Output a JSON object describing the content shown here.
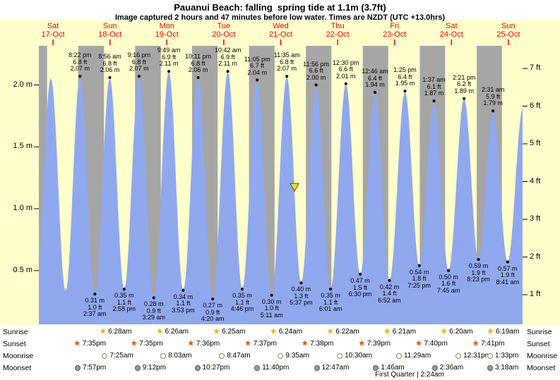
{
  "header": {
    "title": "Pauanui Beach: falling  spring tide at 1.1m (3.7ft)",
    "subtitle": "Image captured 2 hours and 47 minutes before low water. Times are NZDT (UTC +13.0hrs)"
  },
  "days": [
    {
      "name": "Sat",
      "date": "17-Oct"
    },
    {
      "name": "Sun",
      "date": "18-Oct"
    },
    {
      "name": "Mon",
      "date": "19-Oct"
    },
    {
      "name": "Tue",
      "date": "20-Oct"
    },
    {
      "name": "Wed",
      "date": "21-Oct"
    },
    {
      "name": "Thu",
      "date": "22-Oct"
    },
    {
      "name": "Fri",
      "date": "23-Oct"
    },
    {
      "name": "Sat",
      "date": "24-Oct"
    },
    {
      "name": "Sun",
      "date": "25-Oct"
    }
  ],
  "y_axis": {
    "left": [
      {
        "label": "2.0 m",
        "value_m": 2.0
      },
      {
        "label": "1.5 m",
        "value_m": 1.5
      },
      {
        "label": "1.0 m",
        "value_m": 1.0
      },
      {
        "label": "0.5 m",
        "value_m": 0.5
      }
    ],
    "right": [
      {
        "label": "7 ft",
        "value_m": 2.1336
      },
      {
        "label": "6 ft",
        "value_m": 1.8288
      },
      {
        "label": "5 ft",
        "value_m": 1.524
      },
      {
        "label": "4 ft",
        "value_m": 1.2192
      },
      {
        "label": "3 ft",
        "value_m": 0.9144
      },
      {
        "label": "2 ft",
        "value_m": 0.6096
      },
      {
        "label": "1 ft",
        "value_m": 0.3048
      }
    ]
  },
  "chart_data": {
    "type": "area",
    "series_name": "tide height",
    "title": "Pauanui Beach tide curve, Sat 17-Oct to Sun 25-Oct",
    "x_unit": "hours from Sat 17-Oct 00:00",
    "x_range_hours": [
      3,
      207
    ],
    "ylim_m": [
      0,
      2.32
    ],
    "highs": [
      {
        "time": "8:22 pm",
        "ft": "6.8 ft",
        "m": "2.07 m",
        "hour": 20.37,
        "height_m": 2.07
      },
      {
        "time": "8:56 am",
        "ft": "6.8 ft",
        "m": "2.06 m",
        "hour": 32.93,
        "height_m": 2.06
      },
      {
        "time": "9:16 pm",
        "ft": "6.8 ft",
        "m": "2.07 m",
        "hour": 45.27,
        "height_m": 2.07
      },
      {
        "time": "9:49 am",
        "ft": "6.9 ft",
        "m": "2.11 m",
        "hour": 57.82,
        "height_m": 2.11
      },
      {
        "time": "10:11 pm",
        "ft": "6.8 ft",
        "m": "2.06 m",
        "hour": 70.18,
        "height_m": 2.06
      },
      {
        "time": "10:42 am",
        "ft": "6.9 ft",
        "m": "2.11 m",
        "hour": 82.7,
        "height_m": 2.11
      },
      {
        "time": "11:05 pm",
        "ft": "6.7 ft",
        "m": "2.04 m",
        "hour": 95.08,
        "height_m": 2.04
      },
      {
        "time": "11:35 am",
        "ft": "6.8 ft",
        "m": "2.07 m",
        "hour": 107.58,
        "height_m": 2.07
      },
      {
        "time": "11:56 pm",
        "ft": "6.6 ft",
        "m": "2.00 m",
        "hour": 119.93,
        "height_m": 2.0
      },
      {
        "time": "12:30 pm",
        "ft": "6.6 ft",
        "m": "2.01 m",
        "hour": 132.5,
        "height_m": 2.01
      },
      {
        "time": "12:46 am",
        "ft": "6.4 ft",
        "m": "1.94 m",
        "hour": 144.77,
        "height_m": 1.94
      },
      {
        "time": "1:25 pm",
        "ft": "6.4 ft",
        "m": "1.95 m",
        "hour": 157.42,
        "height_m": 1.95
      },
      {
        "time": "1:37 am",
        "ft": "6.1 ft",
        "m": "1.87 m",
        "hour": 169.62,
        "height_m": 1.87
      },
      {
        "time": "2:21 pm",
        "ft": "6.2 ft",
        "m": "1.89 m",
        "hour": 182.35,
        "height_m": 1.89
      },
      {
        "time": "2:31 am",
        "ft": "5.9 ft",
        "m": "1.79 m",
        "hour": 194.52,
        "height_m": 1.79
      }
    ],
    "lows": [
      {
        "time": "2:37 am",
        "ft": "1.0 ft",
        "m": "0.31 m",
        "hour": 26.62,
        "height_m": 0.31
      },
      {
        "time": "2:58 pm",
        "ft": "1.1 ft",
        "m": "0.35 m",
        "hour": 38.97,
        "height_m": 0.35
      },
      {
        "time": "3:29 am",
        "ft": "0.9 ft",
        "m": "0.28 m",
        "hour": 51.48,
        "height_m": 0.28
      },
      {
        "time": "3:53 pm",
        "ft": "1.1 ft",
        "m": "0.34 m",
        "hour": 63.88,
        "height_m": 0.34
      },
      {
        "time": "4:20 am",
        "ft": "0.9 ft",
        "m": "0.27 m",
        "hour": 76.33,
        "height_m": 0.27
      },
      {
        "time": "4:46 pm",
        "ft": "1.1 ft",
        "m": "0.35 m",
        "hour": 88.77,
        "height_m": 0.35
      },
      {
        "time": "5:11 am",
        "ft": "1.0 ft",
        "m": "0.30 m",
        "hour": 101.18,
        "height_m": 0.3
      },
      {
        "time": "5:37 pm",
        "ft": "1.3 ft",
        "m": "0.40 m",
        "hour": 113.62,
        "height_m": 0.4
      },
      {
        "time": "6:01 am",
        "ft": "1.1 ft",
        "m": "0.35 m",
        "hour": 126.02,
        "height_m": 0.35
      },
      {
        "time": "6:30 pm",
        "ft": "1.5 ft",
        "m": "0.47 m",
        "hour": 138.5,
        "height_m": 0.47
      },
      {
        "time": "6:52 am",
        "ft": "1.4 ft",
        "m": "0.42 m",
        "hour": 150.87,
        "height_m": 0.42
      },
      {
        "time": "7:25 pm",
        "ft": "1.8 ft",
        "m": "0.54 m",
        "hour": 163.42,
        "height_m": 0.54
      },
      {
        "time": "7:45 am",
        "ft": "1.6 ft",
        "m": "0.50 m",
        "hour": 175.75,
        "height_m": 0.5
      },
      {
        "time": "8:23 pm",
        "ft": "1.9 ft",
        "m": "0.59 m",
        "hour": 188.38,
        "height_m": 0.59
      },
      {
        "time": "8:41 am",
        "ft": "1.9 ft",
        "m": "0.57 m",
        "hour": 200.68,
        "height_m": 0.57
      }
    ],
    "edge_extremes": [
      {
        "hour": 1.83,
        "height_m": 0.33
      },
      {
        "hour": 8.05,
        "height_m": 2.06
      },
      {
        "hour": 14.3,
        "height_m": 0.33
      },
      {
        "hour": 207.2,
        "height_m": 1.82
      }
    ],
    "night_bands": [
      [
        3.0,
        6.48
      ],
      [
        19.58,
        30.47
      ],
      [
        43.58,
        54.43
      ],
      [
        67.6,
        78.42
      ],
      [
        91.62,
        102.4
      ],
      [
        115.63,
        126.37
      ],
      [
        139.65,
        150.35
      ],
      [
        163.67,
        174.33
      ],
      [
        187.68,
        198.32
      ]
    ],
    "marker": {
      "hour": 110.83,
      "height_m": 1.13,
      "meaning": "capture time, 2h47m before low water, tide 1.1m falling"
    },
    "legend": "none",
    "grid": false,
    "colors": {
      "area": "#90a8ee",
      "night": "#a6a6a6",
      "day_bg": "#ffffcc",
      "day_label": "#ee0000",
      "marker_fill": "#ffe400"
    }
  },
  "astro": {
    "rows": [
      {
        "label": "Sunrise",
        "icon": "sunrise-star-icon",
        "entries": [
          {
            "time": "6:28am",
            "hour": 30.47
          },
          {
            "time": "6:26am",
            "hour": 54.43
          },
          {
            "time": "6:25am",
            "hour": 78.42
          },
          {
            "time": "6:24am",
            "hour": 102.4
          },
          {
            "time": "6:22am",
            "hour": 126.37
          },
          {
            "time": "6:21am",
            "hour": 150.35
          },
          {
            "time": "6:20am",
            "hour": 174.33
          },
          {
            "time": "6:19am",
            "hour": 198.32
          }
        ]
      },
      {
        "label": "Sunset",
        "icon": "sunset-star-icon",
        "entries": [
          {
            "time": "7:35pm",
            "hour": 19.58
          },
          {
            "time": "7:35pm",
            "hour": 43.58
          },
          {
            "time": "7:36pm",
            "hour": 67.6
          },
          {
            "time": "7:37pm",
            "hour": 91.62
          },
          {
            "time": "7:38pm",
            "hour": 115.63
          },
          {
            "time": "7:39pm",
            "hour": 139.65
          },
          {
            "time": "7:40pm",
            "hour": 163.67
          },
          {
            "time": "7:41pm",
            "hour": 187.68
          }
        ]
      },
      {
        "label": "Moonrise",
        "icon": "moonrise-circle-icon",
        "entries": [
          {
            "time": "7:25am",
            "hour": 31.42
          },
          {
            "time": "8:03am",
            "hour": 56.05
          },
          {
            "time": "8:47am",
            "hour": 80.78
          },
          {
            "time": "9:35am",
            "hour": 105.58
          },
          {
            "time": "10:30am",
            "hour": 130.5
          },
          {
            "time": "11:29am",
            "hour": 155.48
          },
          {
            "time": "12:31pm",
            "hour": 180.52
          },
          {
            "time": "1:33pm",
            "hour": 205.55
          }
        ]
      },
      {
        "label": "Moonset",
        "icon": "moonset-circle-icon",
        "entries": [
          {
            "time": "7:57pm",
            "hour": 19.95
          },
          {
            "time": "9:12pm",
            "hour": 45.2
          },
          {
            "time": "10:27pm",
            "hour": 70.45
          },
          {
            "time": "11:40pm",
            "hour": 95.67
          },
          {
            "time": "12:47am",
            "hour": 120.78
          },
          {
            "time": "1:46am",
            "hour": 145.77
          },
          {
            "time": "2:36am",
            "hour": 170.6
          },
          {
            "time": "3:18am",
            "hour": 195.3
          }
        ]
      }
    ],
    "footer": "First Quarter | 2:24am"
  }
}
